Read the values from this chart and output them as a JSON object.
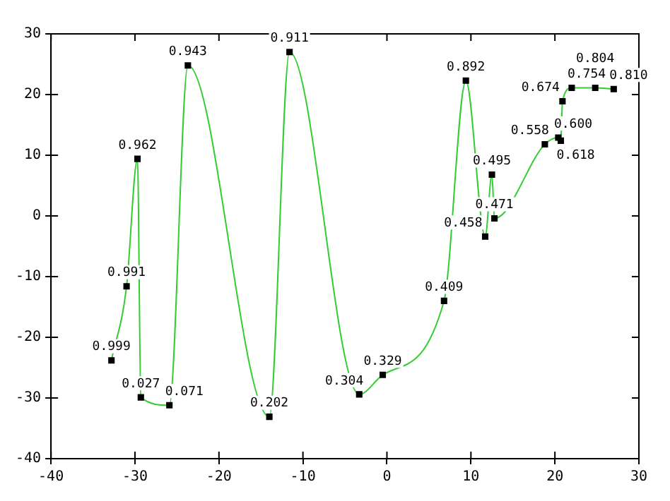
{
  "chart_data": {
    "type": "line",
    "x": [
      -32.8,
      -31.0,
      -29.7,
      -29.3,
      -25.9,
      -23.7,
      -14.0,
      -11.6,
      -3.3,
      -0.5,
      6.8,
      9.4,
      11.7,
      12.5,
      12.8,
      18.8,
      20.4,
      20.7,
      20.9,
      22.0,
      24.8,
      27.0
    ],
    "series": [
      {
        "color": "#33cc33",
        "values": [
          -23.8,
          -11.6,
          9.4,
          -29.9,
          -31.2,
          24.8,
          -33.1,
          27.0,
          -29.4,
          -26.2,
          -14.0,
          22.3,
          -3.4,
          6.8,
          -0.4,
          11.8,
          12.9,
          12.4,
          18.9,
          21.1,
          21.1,
          20.9
        ]
      }
    ],
    "annotations": [
      {
        "text": "0.999",
        "x": -32.8,
        "y": -23.8
      },
      {
        "text": "0.991",
        "x": -31.0,
        "y": -11.6
      },
      {
        "text": "0.962",
        "x": -29.7,
        "y": 9.4
      },
      {
        "text": "0.027",
        "x": -29.3,
        "y": -29.9
      },
      {
        "text": "0.071",
        "x": -25.9,
        "y": -31.2
      },
      {
        "text": "0.943",
        "x": -23.7,
        "y": 24.8
      },
      {
        "text": "0.202",
        "x": -14.0,
        "y": -33.1
      },
      {
        "text": "0.911",
        "x": -11.6,
        "y": 27.0
      },
      {
        "text": "0.304",
        "x": -3.3,
        "y": -29.4
      },
      {
        "text": "0.329",
        "x": -0.5,
        "y": -26.2
      },
      {
        "text": "0.409",
        "x": 6.8,
        "y": -14.0
      },
      {
        "text": "0.892",
        "x": 9.4,
        "y": 22.3
      },
      {
        "text": "0.458",
        "x": 11.7,
        "y": -3.4
      },
      {
        "text": "0.495",
        "x": 12.5,
        "y": 6.8
      },
      {
        "text": "0.471",
        "x": 12.8,
        "y": -0.4
      },
      {
        "text": "0.558",
        "x": 18.8,
        "y": 11.8
      },
      {
        "text": "0.600",
        "x": 20.4,
        "y": 12.9
      },
      {
        "text": "0.618",
        "x": 20.7,
        "y": 12.4
      },
      {
        "text": "0.674",
        "x": 20.9,
        "y": 18.9
      },
      {
        "text": "0.754",
        "x": 22.0,
        "y": 21.1
      },
      {
        "text": "0.804",
        "x": 24.8,
        "y": 21.1
      },
      {
        "text": "0.810",
        "x": 27.0,
        "y": 20.9
      }
    ],
    "xlim": [
      -40,
      30
    ],
    "xticks": [
      -40,
      -30,
      -20,
      -10,
      0,
      10,
      20,
      30
    ],
    "ylim": [
      -40,
      30
    ],
    "yticks": [
      -40,
      -30,
      -20,
      -10,
      0,
      10,
      20,
      30
    ],
    "grid": false,
    "legend": false,
    "marker": "square",
    "line_style": "solid"
  }
}
